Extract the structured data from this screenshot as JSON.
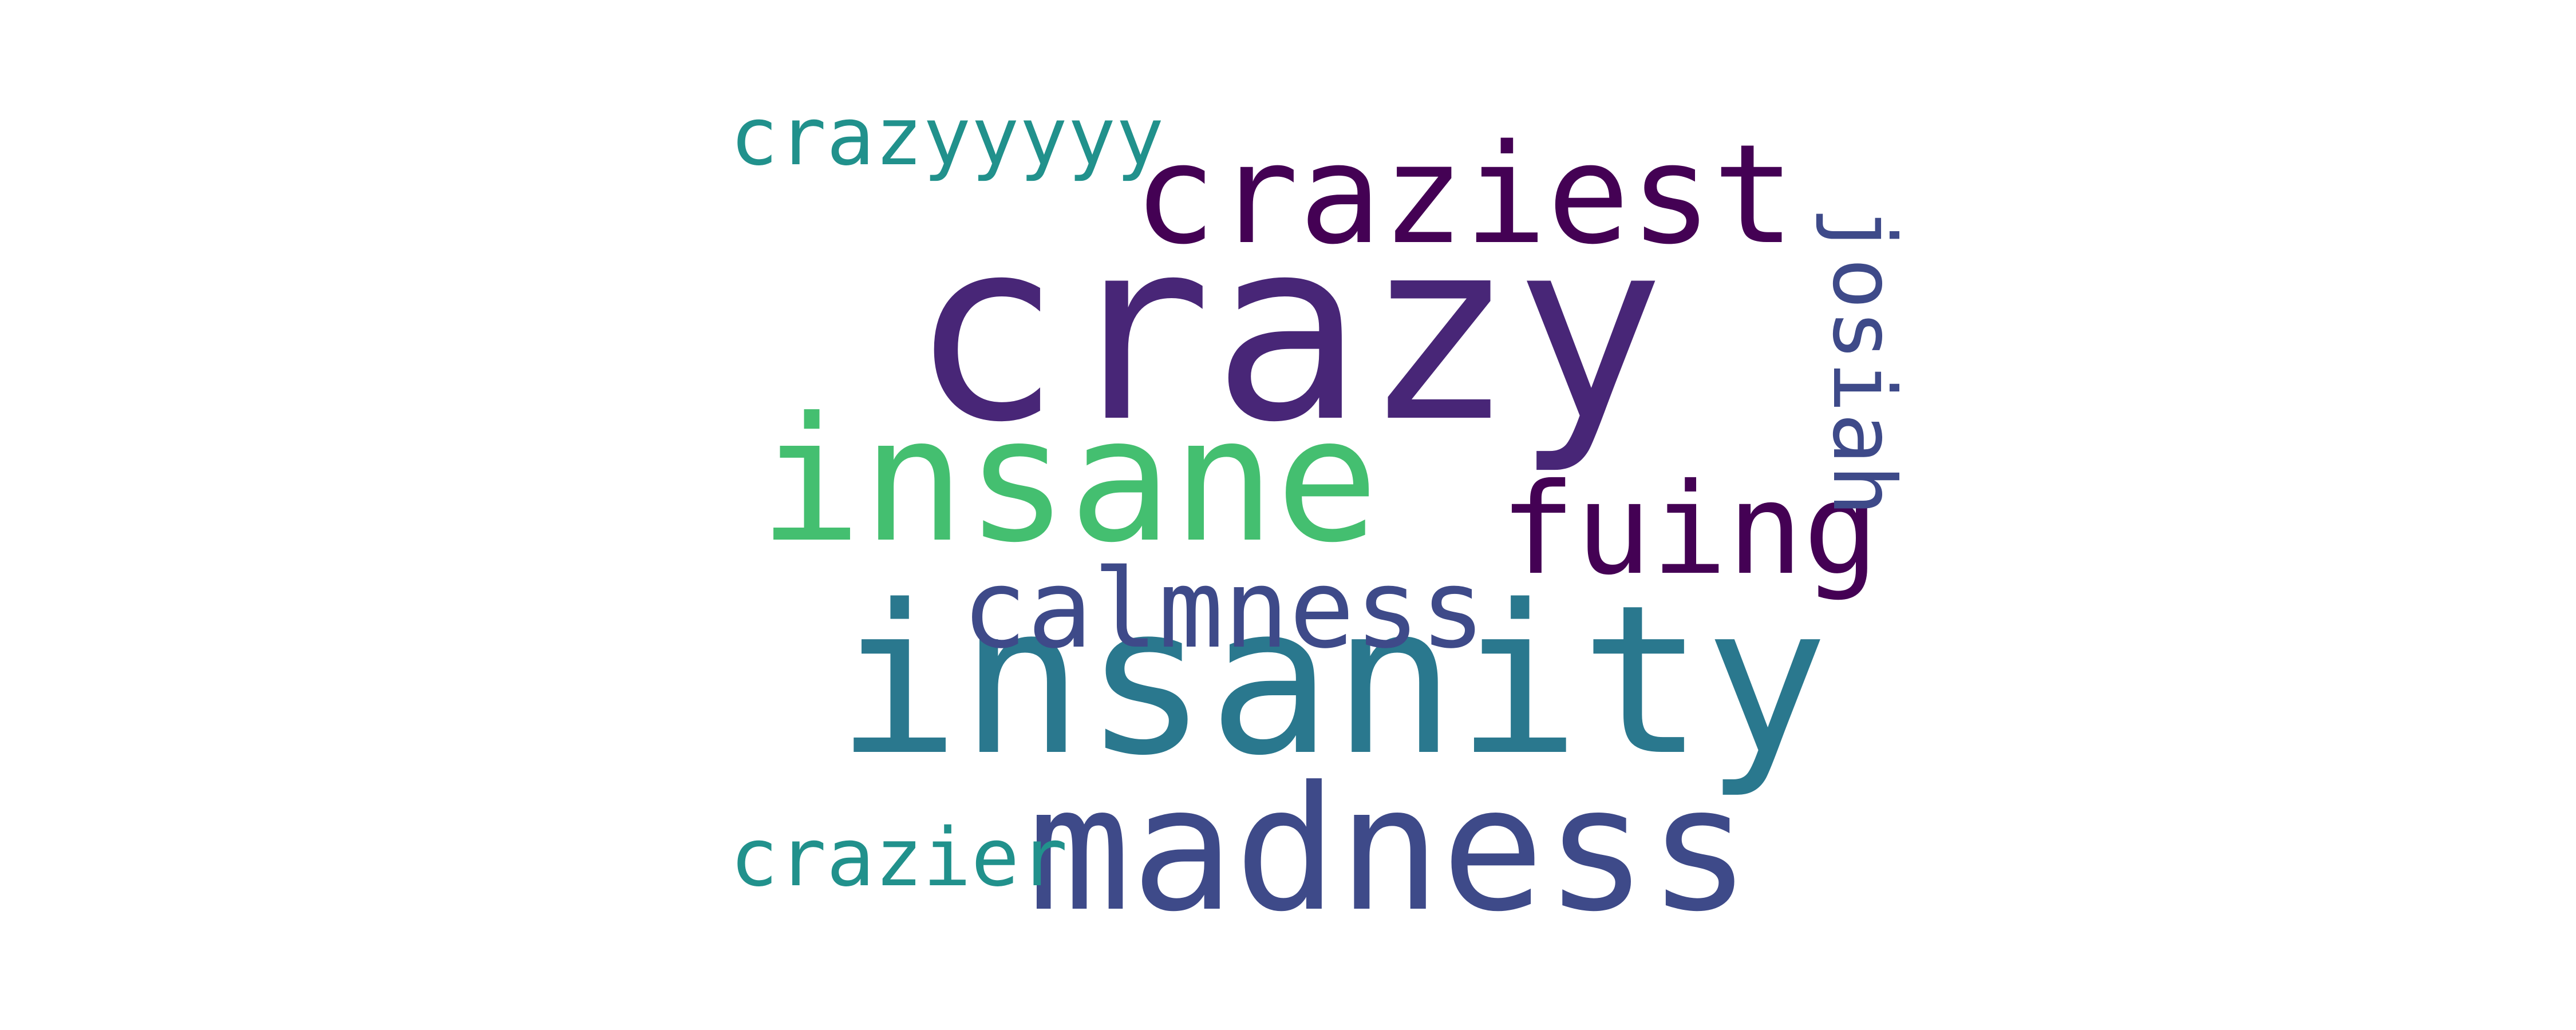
{
  "words": [
    {
      "text": "crazy",
      "color": "#482677"
    },
    {
      "text": "insanity",
      "color": "#2a788e"
    },
    {
      "text": "insane",
      "color": "#44bf70"
    },
    {
      "text": "madness",
      "color": "#3e4a89"
    },
    {
      "text": "craziest",
      "color": "#440154"
    },
    {
      "text": "fuing",
      "color": "#440154"
    },
    {
      "text": "calmness",
      "color": "#3e4a89"
    },
    {
      "text": "crazyyyyy",
      "color": "#21918c"
    },
    {
      "text": "crazier",
      "color": "#21918c"
    },
    {
      "text": "josiah",
      "color": "#3e4a89"
    }
  ]
}
